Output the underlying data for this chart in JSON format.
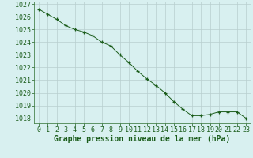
{
  "x": [
    0,
    1,
    2,
    3,
    4,
    5,
    6,
    7,
    8,
    9,
    10,
    11,
    12,
    13,
    14,
    15,
    16,
    17,
    18,
    19,
    20,
    21,
    22,
    23
  ],
  "y": [
    1026.6,
    1026.2,
    1025.8,
    1025.3,
    1025.0,
    1024.8,
    1024.5,
    1024.0,
    1023.7,
    1023.0,
    1022.4,
    1021.7,
    1021.1,
    1020.6,
    1020.0,
    1019.3,
    1018.7,
    1018.2,
    1018.2,
    1018.3,
    1018.5,
    1018.5,
    1018.5,
    1018.0
  ],
  "line_color": "#1a5c1a",
  "marker": "+",
  "marker_size": 3,
  "bg_color": "#d8f0f0",
  "grid_color": "#b8cece",
  "xlabel": "Graphe pression niveau de la mer (hPa)",
  "xlabel_fontsize": 7,
  "xtick_labels": [
    "0",
    "1",
    "2",
    "3",
    "4",
    "5",
    "6",
    "7",
    "8",
    "9",
    "10",
    "11",
    "12",
    "13",
    "14",
    "15",
    "16",
    "17",
    "18",
    "19",
    "20",
    "21",
    "22",
    "23"
  ],
  "ytick_min": 1018,
  "ytick_max": 1027,
  "ytick_step": 1,
  "ylim": [
    1017.6,
    1027.2
  ],
  "xlim": [
    -0.5,
    23.5
  ],
  "axis_color": "#2d6e2d",
  "tick_color": "#1a5c1a",
  "tick_fontsize": 6
}
